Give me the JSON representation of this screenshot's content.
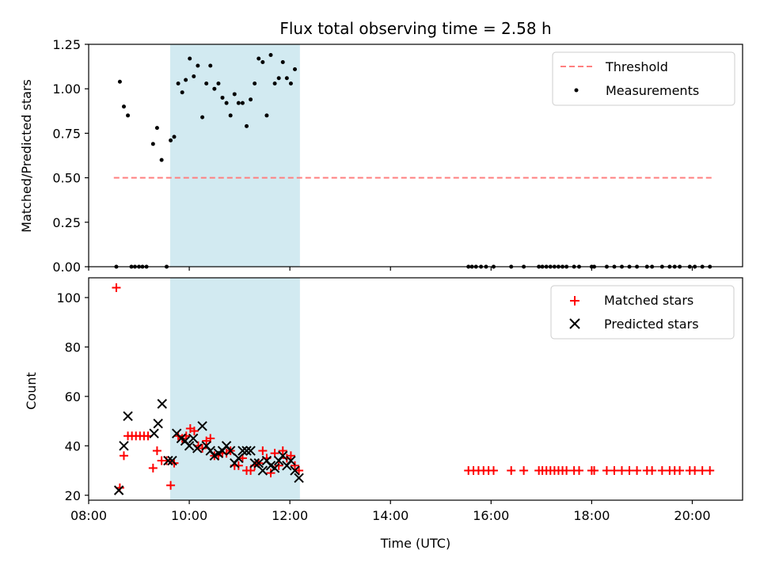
{
  "chart_data": [
    {
      "type": "scatter",
      "title": "Flux total observing time = 2.58 h",
      "xlabel": "",
      "ylabel": "Matched/Predicted stars",
      "x_unit": "hours (UTC)",
      "xlim": [
        8.0,
        21.0
      ],
      "ylim": [
        0.0,
        1.25
      ],
      "yticks": [
        0.0,
        0.25,
        0.5,
        0.75,
        1.0,
        1.25
      ],
      "ytick_labels": [
        "0.00",
        "0.25",
        "0.50",
        "0.75",
        "1.00",
        "1.25"
      ],
      "grid": false,
      "legend_position": "top-right",
      "shaded_region": {
        "x0": 9.62,
        "x1": 12.2,
        "color": "#add8e6"
      },
      "threshold": {
        "name": "Threshold",
        "value": 0.5,
        "x0": 8.5,
        "x1": 20.4,
        "color": "#ff7f7f",
        "style": "dashed"
      },
      "series": [
        {
          "name": "Measurements",
          "color": "#000000",
          "marker": "dot",
          "points": [
            [
              8.55,
              0.0
            ],
            [
              8.62,
              1.04
            ],
            [
              8.7,
              0.9
            ],
            [
              8.78,
              0.85
            ],
            [
              8.85,
              0.0
            ],
            [
              8.92,
              0.0
            ],
            [
              9.0,
              0.0
            ],
            [
              9.07,
              0.0
            ],
            [
              9.15,
              0.0
            ],
            [
              9.28,
              0.69
            ],
            [
              9.36,
              0.78
            ],
            [
              9.45,
              0.6
            ],
            [
              9.55,
              0.0
            ],
            [
              9.63,
              0.71
            ],
            [
              9.7,
              0.73
            ],
            [
              9.78,
              1.03
            ],
            [
              9.86,
              0.98
            ],
            [
              9.93,
              1.05
            ],
            [
              10.01,
              1.17
            ],
            [
              10.09,
              1.07
            ],
            [
              10.17,
              1.13
            ],
            [
              10.26,
              0.84
            ],
            [
              10.34,
              1.03
            ],
            [
              10.42,
              1.13
            ],
            [
              10.5,
              1.0
            ],
            [
              10.58,
              1.03
            ],
            [
              10.66,
              0.95
            ],
            [
              10.74,
              0.92
            ],
            [
              10.82,
              0.85
            ],
            [
              10.9,
              0.97
            ],
            [
              10.98,
              0.92
            ],
            [
              11.06,
              0.92
            ],
            [
              11.14,
              0.79
            ],
            [
              11.22,
              0.94
            ],
            [
              11.3,
              1.03
            ],
            [
              11.38,
              1.17
            ],
            [
              11.46,
              1.15
            ],
            [
              11.54,
              0.85
            ],
            [
              11.62,
              1.19
            ],
            [
              11.7,
              1.03
            ],
            [
              11.78,
              1.06
            ],
            [
              11.86,
              1.15
            ],
            [
              11.94,
              1.06
            ],
            [
              12.02,
              1.03
            ],
            [
              12.1,
              1.11
            ],
            [
              15.55,
              0.0
            ],
            [
              15.62,
              0.0
            ],
            [
              15.7,
              0.0
            ],
            [
              15.8,
              0.0
            ],
            [
              15.9,
              0.0
            ],
            [
              16.05,
              0.0
            ],
            [
              16.4,
              0.0
            ],
            [
              16.65,
              0.0
            ],
            [
              16.95,
              0.0
            ],
            [
              17.02,
              0.0
            ],
            [
              17.1,
              0.0
            ],
            [
              17.18,
              0.0
            ],
            [
              17.26,
              0.0
            ],
            [
              17.34,
              0.0
            ],
            [
              17.42,
              0.0
            ],
            [
              17.5,
              0.0
            ],
            [
              17.65,
              0.0
            ],
            [
              17.75,
              0.0
            ],
            [
              18.0,
              0.0
            ],
            [
              18.05,
              0.0
            ],
            [
              18.3,
              0.0
            ],
            [
              18.45,
              0.0
            ],
            [
              18.6,
              0.0
            ],
            [
              18.75,
              0.0
            ],
            [
              18.9,
              0.0
            ],
            [
              19.1,
              0.0
            ],
            [
              19.2,
              0.0
            ],
            [
              19.4,
              0.0
            ],
            [
              19.55,
              0.0
            ],
            [
              19.65,
              0.0
            ],
            [
              19.75,
              0.0
            ],
            [
              19.95,
              0.0
            ],
            [
              20.05,
              0.0
            ],
            [
              20.2,
              0.0
            ],
            [
              20.35,
              0.0
            ]
          ]
        }
      ]
    },
    {
      "type": "scatter",
      "title": "",
      "xlabel": "Time (UTC)",
      "ylabel": "Count",
      "x_unit": "hours (UTC)",
      "xlim": [
        8.0,
        21.0
      ],
      "ylim": [
        18.0,
        108.0
      ],
      "xticks": [
        8,
        10,
        12,
        14,
        16,
        18,
        20
      ],
      "xtick_labels": [
        "08:00",
        "10:00",
        "12:00",
        "14:00",
        "16:00",
        "18:00",
        "20:00"
      ],
      "yticks": [
        20,
        40,
        60,
        80,
        100
      ],
      "ytick_labels": [
        "20",
        "40",
        "60",
        "80",
        "100"
      ],
      "grid": false,
      "legend_position": "top-right",
      "shaded_region": {
        "x0": 9.62,
        "x1": 12.2,
        "color": "#add8e6"
      },
      "series": [
        {
          "name": "Matched stars",
          "color": "#ff0000",
          "marker": "plus",
          "points": [
            [
              8.55,
              104
            ],
            [
              8.62,
              23
            ],
            [
              8.7,
              36
            ],
            [
              8.78,
              44
            ],
            [
              8.86,
              44
            ],
            [
              8.94,
              44
            ],
            [
              9.02,
              44
            ],
            [
              9.1,
              44
            ],
            [
              9.18,
              44
            ],
            [
              9.28,
              31
            ],
            [
              9.36,
              38
            ],
            [
              9.45,
              34
            ],
            [
              9.55,
              34
            ],
            [
              9.63,
              24
            ],
            [
              9.7,
              33
            ],
            [
              9.78,
              44
            ],
            [
              9.86,
              43
            ],
            [
              9.94,
              44
            ],
            [
              10.02,
              47
            ],
            [
              10.1,
              46
            ],
            [
              10.18,
              40
            ],
            [
              10.26,
              39
            ],
            [
              10.34,
              42
            ],
            [
              10.42,
              43
            ],
            [
              10.5,
              36
            ],
            [
              10.58,
              36
            ],
            [
              10.66,
              37
            ],
            [
              10.74,
              37
            ],
            [
              10.82,
              38
            ],
            [
              10.9,
              32
            ],
            [
              10.98,
              32
            ],
            [
              11.06,
              35
            ],
            [
              11.14,
              30
            ],
            [
              11.22,
              30
            ],
            [
              11.3,
              32
            ],
            [
              11.38,
              33
            ],
            [
              11.46,
              38
            ],
            [
              11.54,
              35
            ],
            [
              11.62,
              29
            ],
            [
              11.7,
              37
            ],
            [
              11.78,
              32
            ],
            [
              11.86,
              38
            ],
            [
              11.94,
              35
            ],
            [
              12.02,
              36
            ],
            [
              12.1,
              32
            ],
            [
              12.18,
              30
            ],
            [
              15.55,
              30
            ],
            [
              15.65,
              30
            ],
            [
              15.75,
              30
            ],
            [
              15.85,
              30
            ],
            [
              15.95,
              30
            ],
            [
              16.05,
              30
            ],
            [
              16.4,
              30
            ],
            [
              16.65,
              30
            ],
            [
              16.95,
              30
            ],
            [
              17.02,
              30
            ],
            [
              17.1,
              30
            ],
            [
              17.18,
              30
            ],
            [
              17.26,
              30
            ],
            [
              17.34,
              30
            ],
            [
              17.42,
              30
            ],
            [
              17.5,
              30
            ],
            [
              17.65,
              30
            ],
            [
              17.75,
              30
            ],
            [
              18.0,
              30
            ],
            [
              18.05,
              30
            ],
            [
              18.3,
              30
            ],
            [
              18.45,
              30
            ],
            [
              18.6,
              30
            ],
            [
              18.75,
              30
            ],
            [
              18.9,
              30
            ],
            [
              19.1,
              30
            ],
            [
              19.2,
              30
            ],
            [
              19.4,
              30
            ],
            [
              19.55,
              30
            ],
            [
              19.65,
              30
            ],
            [
              19.75,
              30
            ],
            [
              19.95,
              30
            ],
            [
              20.05,
              30
            ],
            [
              20.2,
              30
            ],
            [
              20.35,
              30
            ]
          ]
        },
        {
          "name": "Predicted stars",
          "color": "#000000",
          "marker": "x",
          "points": [
            [
              8.6,
              22
            ],
            [
              8.7,
              40
            ],
            [
              8.78,
              52
            ],
            [
              9.3,
              45
            ],
            [
              9.38,
              49
            ],
            [
              9.46,
              57
            ],
            [
              9.58,
              34
            ],
            [
              9.66,
              34
            ],
            [
              9.75,
              45
            ],
            [
              9.84,
              43
            ],
            [
              9.92,
              42
            ],
            [
              10.0,
              40
            ],
            [
              10.08,
              43
            ],
            [
              10.16,
              39
            ],
            [
              10.26,
              48
            ],
            [
              10.34,
              40
            ],
            [
              10.42,
              38
            ],
            [
              10.5,
              36
            ],
            [
              10.58,
              37
            ],
            [
              10.66,
              38
            ],
            [
              10.74,
              40
            ],
            [
              10.82,
              38
            ],
            [
              10.9,
              33
            ],
            [
              10.98,
              35
            ],
            [
              11.06,
              38
            ],
            [
              11.14,
              38
            ],
            [
              11.22,
              38
            ],
            [
              11.3,
              33
            ],
            [
              11.38,
              33
            ],
            [
              11.46,
              30
            ],
            [
              11.54,
              34
            ],
            [
              11.62,
              32
            ],
            [
              11.7,
              31
            ],
            [
              11.78,
              34
            ],
            [
              11.86,
              36
            ],
            [
              11.94,
              32
            ],
            [
              12.02,
              34
            ],
            [
              12.1,
              30
            ],
            [
              12.18,
              27
            ]
          ]
        }
      ]
    }
  ]
}
